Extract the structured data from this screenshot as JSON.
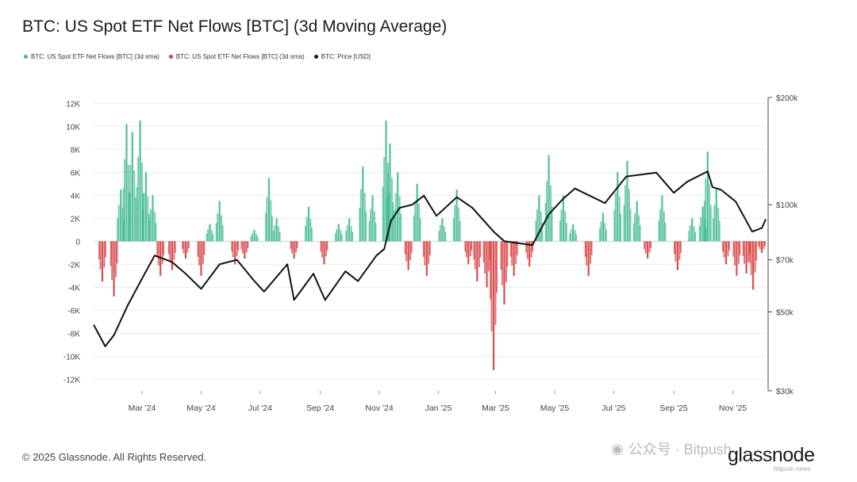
{
  "header": {
    "title": "BTC: US Spot ETF Net Flows [BTC] (3d Moving Average)"
  },
  "legend": [
    {
      "label": "BTC: US Spot ETF Net Flows [BTC] (3d sma)",
      "color": "#3db98c"
    },
    {
      "label": "BTC: US Spot ETF Net Flows [BTC] (3d sma)",
      "color": "#d6393b"
    },
    {
      "label": "BTC: Price [USD]",
      "color": "#111111"
    }
  ],
  "footer": {
    "copyright": "© 2025 Glassnode. All Rights Reserved.",
    "logo": "glassnode",
    "wechat": "公众号 · Bitpush",
    "site": "bitpush.news"
  },
  "colors": {
    "inflow": "#3db98c",
    "outflow": "#d6393b",
    "price": "#111111",
    "grid": "#ececec"
  },
  "chart_data": {
    "type": "bar",
    "title": "BTC: US Spot ETF Net Flows [BTC] (3d Moving Average)",
    "x_ticks": [
      "Mar '24",
      "May '24",
      "Jul '24",
      "Sep '24",
      "Nov '24",
      "Jan '25",
      "Mar '25",
      "May '25",
      "Jul '25",
      "Sep '25",
      "Nov '25"
    ],
    "x_range": [
      "2024-01-11",
      "2025-12-05"
    ],
    "y_left": {
      "ticks": [
        12000,
        10000,
        8000,
        6000,
        4000,
        2000,
        0,
        -2000,
        -4000,
        -6000,
        -8000,
        -10000,
        -12000
      ],
      "tick_labels": [
        "12K",
        "10K",
        "8K",
        "6K",
        "4K",
        "2K",
        "0",
        "-2K",
        "-4K",
        "-6K",
        "-8K",
        "-10K",
        "-12K"
      ],
      "range": [
        -13000,
        12500
      ]
    },
    "y_right": {
      "scale": "log",
      "ticks": [
        200000,
        100000,
        70000,
        50000,
        30000
      ],
      "tick_labels": [
        "$200k",
        "$100k",
        "$70k",
        "$50k",
        "$30k"
      ],
      "range": [
        30000,
        200000
      ]
    },
    "series": [
      {
        "name": "BTC: US Spot ETF Net Flows [BTC] (3d sma)",
        "type": "bar",
        "axis": "left",
        "x": [
          "2024-01-20",
          "2024-02-01",
          "2024-02-08",
          "2024-02-14",
          "2024-02-20",
          "2024-02-28",
          "2024-03-05",
          "2024-03-12",
          "2024-03-20",
          "2024-04-01",
          "2024-04-15",
          "2024-05-01",
          "2024-05-10",
          "2024-05-20",
          "2024-06-05",
          "2024-06-15",
          "2024-06-25",
          "2024-07-10",
          "2024-07-18",
          "2024-08-05",
          "2024-08-20",
          "2024-09-05",
          "2024-09-20",
          "2024-10-01",
          "2024-10-15",
          "2024-10-25",
          "2024-11-08",
          "2024-11-12",
          "2024-11-20",
          "2024-12-01",
          "2024-12-10",
          "2024-12-20",
          "2025-01-05",
          "2025-01-20",
          "2025-02-01",
          "2025-02-10",
          "2025-02-20",
          "2025-02-27",
          "2025-03-10",
          "2025-03-20",
          "2025-04-05",
          "2025-04-15",
          "2025-04-25",
          "2025-05-10",
          "2025-05-20",
          "2025-06-05",
          "2025-06-20",
          "2025-07-05",
          "2025-07-15",
          "2025-07-25",
          "2025-08-05",
          "2025-08-20",
          "2025-09-05",
          "2025-09-20",
          "2025-10-01",
          "2025-10-06",
          "2025-10-15",
          "2025-10-25",
          "2025-11-05",
          "2025-11-15",
          "2025-11-22",
          "2025-12-01"
        ],
        "values": [
          -3500,
          -4800,
          4500,
          10200,
          9500,
          10500,
          6000,
          4000,
          -3000,
          -2500,
          -1500,
          -3000,
          1500,
          3500,
          -2000,
          -1500,
          1000,
          5500,
          2000,
          -1500,
          3000,
          -2000,
          1500,
          2000,
          6500,
          4000,
          10500,
          8500,
          6000,
          -2500,
          5000,
          -3000,
          2000,
          4500,
          -2000,
          -3500,
          -4000,
          -11200,
          -5500,
          -3000,
          -2200,
          4000,
          7500,
          4000,
          1500,
          -3000,
          2500,
          6000,
          7000,
          3500,
          -1500,
          4000,
          -2500,
          2000,
          3000,
          7800,
          4500,
          -2000,
          -3000,
          -2800,
          -4200,
          -1000
        ]
      },
      {
        "name": "BTC: Price [USD]",
        "type": "line",
        "axis": "right",
        "x": [
          "2024-01-11",
          "2024-01-23",
          "2024-02-01",
          "2024-02-15",
          "2024-03-01",
          "2024-03-14",
          "2024-04-01",
          "2024-04-15",
          "2024-05-01",
          "2024-05-20",
          "2024-06-07",
          "2024-06-25",
          "2024-07-05",
          "2024-07-29",
          "2024-08-05",
          "2024-08-25",
          "2024-09-06",
          "2024-09-27",
          "2024-10-10",
          "2024-10-29",
          "2024-11-06",
          "2024-11-13",
          "2024-11-22",
          "2024-12-05",
          "2024-12-17",
          "2024-12-30",
          "2025-01-20",
          "2025-02-05",
          "2025-02-27",
          "2025-03-10",
          "2025-04-08",
          "2025-04-25",
          "2025-05-10",
          "2025-05-22",
          "2025-06-22",
          "2025-07-14",
          "2025-08-14",
          "2025-09-01",
          "2025-09-15",
          "2025-10-06",
          "2025-10-11",
          "2025-10-20",
          "2025-11-04",
          "2025-11-21",
          "2025-12-01",
          "2025-12-05"
        ],
        "values": [
          46000,
          40000,
          43000,
          52000,
          62000,
          72000,
          69000,
          64000,
          58000,
          68000,
          70000,
          61000,
          57000,
          68000,
          54000,
          64000,
          54000,
          65000,
          61000,
          72000,
          75000,
          90000,
          98000,
          100000,
          106000,
          93000,
          105000,
          98000,
          84000,
          79000,
          77000,
          94000,
          104000,
          111000,
          101000,
          120000,
          123000,
          108000,
          116000,
          124000,
          112000,
          110000,
          102000,
          84000,
          86000,
          91000
        ]
      }
    ]
  }
}
